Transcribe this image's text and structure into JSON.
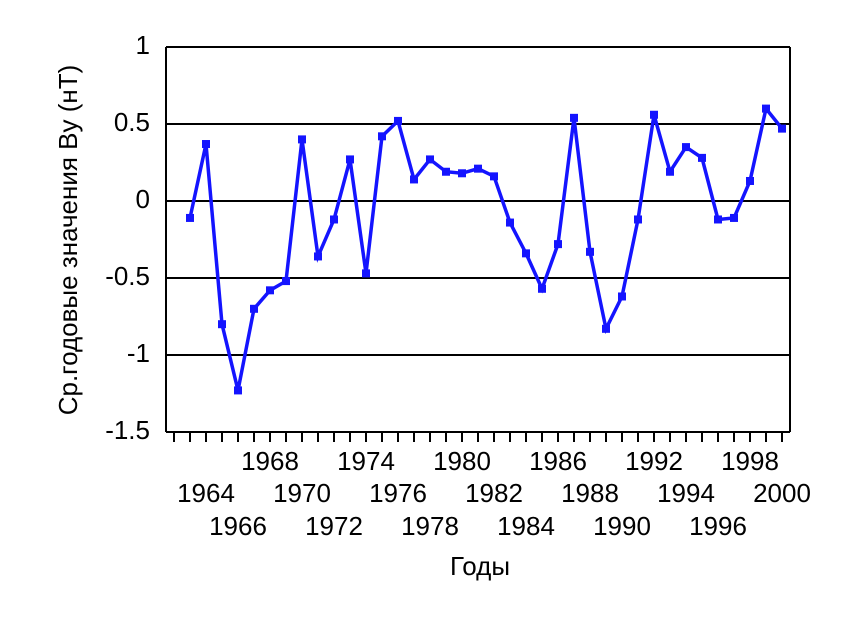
{
  "chart_data": {
    "type": "line",
    "x_label": "Годы",
    "y_label": "Ср.годовые значения By (нТ)",
    "x": [
      1963,
      1964,
      1965,
      1966,
      1967,
      1968,
      1969,
      1970,
      1971,
      1972,
      1973,
      1974,
      1975,
      1976,
      1977,
      1978,
      1979,
      1980,
      1981,
      1982,
      1983,
      1984,
      1985,
      1986,
      1987,
      1988,
      1989,
      1990,
      1991,
      1992,
      1993,
      1994,
      1995,
      1996,
      1997,
      1998,
      1999,
      2000
    ],
    "series": [
      {
        "color": "#1414ff",
        "values": [
          -0.11,
          0.37,
          -0.8,
          -1.23,
          -0.7,
          -0.58,
          -0.52,
          0.4,
          -0.36,
          -0.12,
          0.27,
          -0.47,
          0.42,
          0.52,
          0.14,
          0.27,
          0.19,
          0.18,
          0.21,
          0.16,
          -0.14,
          -0.34,
          -0.57,
          -0.28,
          0.54,
          -0.33,
          -0.83,
          -0.62,
          -0.12,
          0.56,
          0.19,
          0.35,
          0.28,
          -0.12,
          -0.11,
          0.13,
          0.6,
          0.47
        ]
      }
    ],
    "xlim": [
      1961.5,
      2000.5
    ],
    "xticks": [
      1964,
      1966,
      1968,
      1970,
      1972,
      1974,
      1976,
      1978,
      1980,
      1982,
      1984,
      1986,
      1988,
      1990,
      1992,
      1994,
      1996,
      1998,
      2000
    ],
    "xminorticks": [
      1962,
      1963,
      1965,
      1967,
      1969,
      1971,
      1973,
      1975,
      1977,
      1979,
      1981,
      1983,
      1985,
      1987,
      1989,
      1991,
      1993,
      1995,
      1997,
      1999
    ],
    "ylim": [
      -1.5,
      1
    ],
    "yticks": [
      -1.5,
      -1,
      -0.5,
      0,
      0.5,
      1
    ],
    "grid": true
  }
}
